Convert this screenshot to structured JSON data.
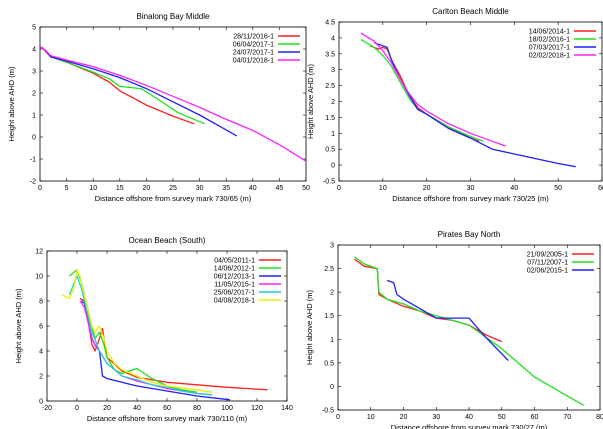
{
  "chart_data": [
    {
      "type": "line",
      "title": "Binalong Bay Middle",
      "xlabel": "Distance offshore from survey mark 730/65 (m)",
      "ylabel": "Height above AHD (m)",
      "xlim": [
        0,
        50
      ],
      "ylim": [
        -2,
        5
      ],
      "xticks": [
        0,
        5,
        10,
        15,
        20,
        25,
        30,
        35,
        40,
        45,
        50
      ],
      "yticks": [
        -2,
        -1,
        0,
        1,
        2,
        3,
        4,
        5
      ],
      "legend": "top-right",
      "series": [
        {
          "name": "28/11/2016-1",
          "color": "#ff2020",
          "x": [
            0,
            0.5,
            1,
            2,
            5,
            10,
            13,
            15,
            20,
            25,
            29
          ],
          "y": [
            4.1,
            4.05,
            3.9,
            3.65,
            3.4,
            2.9,
            2.5,
            2.1,
            1.45,
            0.95,
            0.6
          ]
        },
        {
          "name": "06/04/2017-1",
          "color": "#20e020",
          "x": [
            0,
            1,
            2,
            5,
            10,
            13,
            15,
            19,
            22,
            26,
            31
          ],
          "y": [
            4.1,
            3.95,
            3.65,
            3.4,
            2.95,
            2.65,
            2.3,
            2.2,
            1.75,
            1.1,
            0.6
          ]
        },
        {
          "name": "24/07/2017-1",
          "color": "#2020ff",
          "x": [
            0,
            1,
            2,
            5,
            10,
            15,
            20,
            25,
            30,
            37
          ],
          "y": [
            4.1,
            3.95,
            3.65,
            3.45,
            3.1,
            2.7,
            2.2,
            1.6,
            1.0,
            0.05
          ]
        },
        {
          "name": "04/01/2018-1",
          "color": "#ff20ff",
          "x": [
            0,
            1,
            2,
            5,
            10,
            15,
            20,
            25,
            30,
            35,
            40,
            45,
            50
          ],
          "y": [
            4.1,
            3.95,
            3.7,
            3.5,
            3.2,
            2.8,
            2.35,
            1.85,
            1.35,
            0.8,
            0.3,
            -0.35,
            -1.1
          ]
        }
      ]
    },
    {
      "type": "line",
      "title": "Carlton Beach Middle",
      "xlabel": "Distance offshore from survey mark 730/25 (m)",
      "ylabel": "Height above AHD (m)",
      "xlim": [
        0,
        60
      ],
      "ylim": [
        -0.5,
        4.5
      ],
      "xticks": [
        0,
        10,
        20,
        30,
        40,
        50,
        60
      ],
      "yticks": [
        -0.5,
        0,
        0.5,
        1,
        1.5,
        2,
        2.5,
        3,
        3.5,
        4,
        4.5
      ],
      "legend": "top-right",
      "series": [
        {
          "name": "14/06/2014-1",
          "color": "#ff2020",
          "x": [
            7,
            9,
            10,
            11,
            12,
            14,
            16,
            18,
            20,
            25,
            30,
            32
          ],
          "y": [
            3.75,
            3.65,
            3.7,
            3.65,
            3.3,
            2.8,
            2.2,
            1.8,
            1.6,
            1.2,
            0.85,
            0.75
          ]
        },
        {
          "name": "18/02/2016-1",
          "color": "#20e020",
          "x": [
            5,
            8,
            10,
            12,
            14,
            16,
            18,
            20,
            25,
            30,
            33
          ],
          "y": [
            3.95,
            3.7,
            3.45,
            3.1,
            2.6,
            2.1,
            1.75,
            1.6,
            1.2,
            0.9,
            0.75
          ]
        },
        {
          "name": "07/03/2017-1",
          "color": "#2020ff",
          "x": [
            8,
            10,
            11,
            12,
            14,
            16,
            18,
            20,
            25,
            30,
            35,
            40,
            45,
            50,
            54
          ],
          "y": [
            3.85,
            3.75,
            3.7,
            3.3,
            2.7,
            2.2,
            1.75,
            1.6,
            1.15,
            0.85,
            0.5,
            0.35,
            0.2,
            0.05,
            -0.05
          ]
        },
        {
          "name": "02/02/2018-1",
          "color": "#ff20ff",
          "x": [
            5,
            8,
            10,
            12,
            14,
            16,
            18,
            20,
            25,
            30,
            35,
            38
          ],
          "y": [
            4.15,
            3.9,
            3.6,
            3.2,
            2.7,
            2.25,
            1.9,
            1.7,
            1.3,
            1.0,
            0.75,
            0.6
          ]
        }
      ]
    },
    {
      "type": "line",
      "title": "Ocean Beach (South)",
      "xlabel": "Distance offshore from survey mark 730/110 (m)",
      "ylabel": "Height above AHD (m)",
      "xlim": [
        -20,
        140
      ],
      "ylim": [
        0,
        12
      ],
      "xticks": [
        -20,
        0,
        20,
        40,
        60,
        80,
        100,
        120,
        140
      ],
      "yticks": [
        0,
        2,
        4,
        6,
        8,
        10,
        12
      ],
      "legend": "top-right",
      "series": [
        {
          "name": "04/05/2011-1",
          "color": "#ff2020",
          "x": [
            2,
            5,
            8,
            10,
            12,
            15,
            17,
            20,
            30,
            40,
            60,
            80,
            100,
            127
          ],
          "y": [
            8.2,
            8.0,
            6.0,
            4.5,
            4.0,
            5.0,
            5.8,
            3.5,
            2.4,
            1.9,
            1.5,
            1.3,
            1.1,
            0.9
          ]
        },
        {
          "name": "14/06/2012-1",
          "color": "#20e020",
          "x": [
            -5,
            0,
            3,
            5,
            8,
            10,
            12,
            15,
            18,
            20,
            25,
            30,
            35,
            40,
            50,
            60,
            70,
            80
          ],
          "y": [
            10.0,
            10.5,
            9.5,
            8.5,
            7.0,
            6.0,
            5.0,
            5.5,
            4.5,
            3.5,
            2.5,
            2.2,
            2.4,
            2.6,
            1.8,
            1.2,
            0.9,
            0.7
          ]
        },
        {
          "name": "06/12/2013-1",
          "color": "#2020ff",
          "x": [
            3,
            5,
            8,
            10,
            12,
            15,
            17,
            20,
            30,
            40,
            60,
            80,
            102
          ],
          "y": [
            8.0,
            7.8,
            6.0,
            5.0,
            4.5,
            4.0,
            2.0,
            1.8,
            1.5,
            1.2,
            0.8,
            0.4,
            0.1
          ]
        },
        {
          "name": "11/05/2015-1",
          "color": "#ff20ff",
          "x": [
            2,
            5,
            8,
            10,
            12,
            15,
            20,
            25,
            30,
            40,
            50,
            60,
            70,
            80,
            90
          ],
          "y": [
            8.0,
            7.5,
            6.0,
            5.0,
            4.5,
            4.0,
            3.0,
            2.5,
            2.0,
            1.6,
            1.3,
            1.0,
            0.8,
            0.6,
            0.5
          ]
        },
        {
          "name": "25/06/2017-1",
          "color": "#20d0e0",
          "x": [
            -5,
            0,
            3,
            5,
            8,
            10,
            15,
            20,
            25,
            30,
            40,
            50,
            60,
            70,
            80,
            90
          ],
          "y": [
            8.5,
            10.0,
            9.0,
            8.0,
            6.5,
            5.5,
            4.0,
            3.0,
            2.5,
            2.0,
            1.7,
            1.3,
            1.1,
            0.8,
            0.6,
            0.5
          ]
        },
        {
          "name": "04/08/2018-1",
          "color": "#f0f000",
          "x": [
            -10,
            -5,
            -2,
            0,
            2,
            5,
            8,
            10,
            12,
            15,
            18,
            20,
            25,
            30,
            40,
            50,
            60,
            80,
            90
          ],
          "y": [
            8.5,
            8.2,
            9.0,
            10.5,
            10.0,
            8.5,
            7.0,
            6.0,
            5.5,
            6.0,
            5.0,
            4.0,
            3.0,
            2.5,
            2.0,
            1.5,
            1.2,
            0.9,
            0.7
          ]
        }
      ]
    },
    {
      "type": "line",
      "title": "Pirates Bay North",
      "xlabel": "Distance offshore from survey mark 730/27 (m)",
      "ylabel": "Height above AHD (m)",
      "xlim": [
        0,
        80
      ],
      "ylim": [
        -0.5,
        3
      ],
      "xticks": [
        0,
        10,
        20,
        30,
        40,
        50,
        60,
        70,
        80
      ],
      "yticks": [
        -0.5,
        0,
        0.5,
        1,
        1.5,
        2,
        2.5,
        3
      ],
      "legend": "top-right",
      "series": [
        {
          "name": "21/09/2005-1",
          "color": "#ff2020",
          "x": [
            5,
            8,
            12,
            12.5,
            15,
            20,
            25,
            30,
            35,
            40,
            45,
            50
          ],
          "y": [
            2.7,
            2.55,
            2.5,
            1.95,
            1.85,
            1.7,
            1.6,
            1.45,
            1.4,
            1.3,
            1.1,
            0.95
          ]
        },
        {
          "name": "07/11/2007-1",
          "color": "#20e020",
          "x": [
            5,
            8,
            12,
            12.5,
            15,
            20,
            25,
            30,
            35,
            40,
            45,
            50,
            55,
            60,
            65,
            70,
            75
          ],
          "y": [
            2.75,
            2.6,
            2.5,
            2.0,
            1.85,
            1.75,
            1.6,
            1.5,
            1.4,
            1.3,
            1.05,
            0.8,
            0.5,
            0.2,
            0.0,
            -0.2,
            -0.4
          ]
        },
        {
          "name": "02/06/2015-1",
          "color": "#2020ff",
          "x": [
            15,
            17,
            18,
            20,
            25,
            30,
            35,
            40,
            45,
            52
          ],
          "y": [
            2.25,
            2.2,
            1.95,
            1.85,
            1.65,
            1.45,
            1.45,
            1.45,
            1.05,
            0.55
          ]
        }
      ]
    }
  ]
}
